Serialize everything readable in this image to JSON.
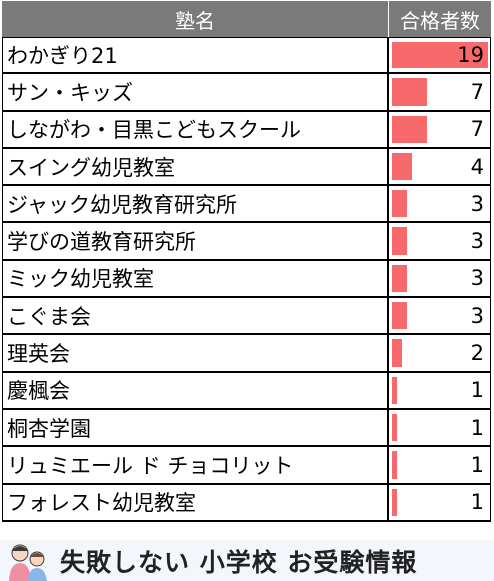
{
  "header": {
    "name_label": "塾名",
    "count_label": "合格者数"
  },
  "chart_data": {
    "type": "table",
    "columns": [
      "塾名",
      "合格者数"
    ],
    "max_value": 19,
    "bar_color": "#f8696b",
    "rows": [
      {
        "name": "わかぎり21",
        "value": 19
      },
      {
        "name": "サン・キッズ",
        "value": 7
      },
      {
        "name": "しながわ・目黒こどもスクール",
        "value": 7
      },
      {
        "name": "スイング幼児教室",
        "value": 4
      },
      {
        "name": "ジャック幼児教育研究所",
        "value": 3
      },
      {
        "name": "学びの道教育研究所",
        "value": 3
      },
      {
        "name": "ミック幼児教室",
        "value": 3
      },
      {
        "name": "こぐま会",
        "value": 3
      },
      {
        "name": "理英会",
        "value": 2
      },
      {
        "name": "慶楓会",
        "value": 1
      },
      {
        "name": "桐杏学園",
        "value": 1
      },
      {
        "name": "リュミエール ド チョコリット",
        "value": 1
      },
      {
        "name": "フォレスト幼児教室",
        "value": 1
      }
    ]
  },
  "footer": {
    "text": "失敗しない 小学校 お受験情報",
    "icon": "parent-child-icon"
  }
}
